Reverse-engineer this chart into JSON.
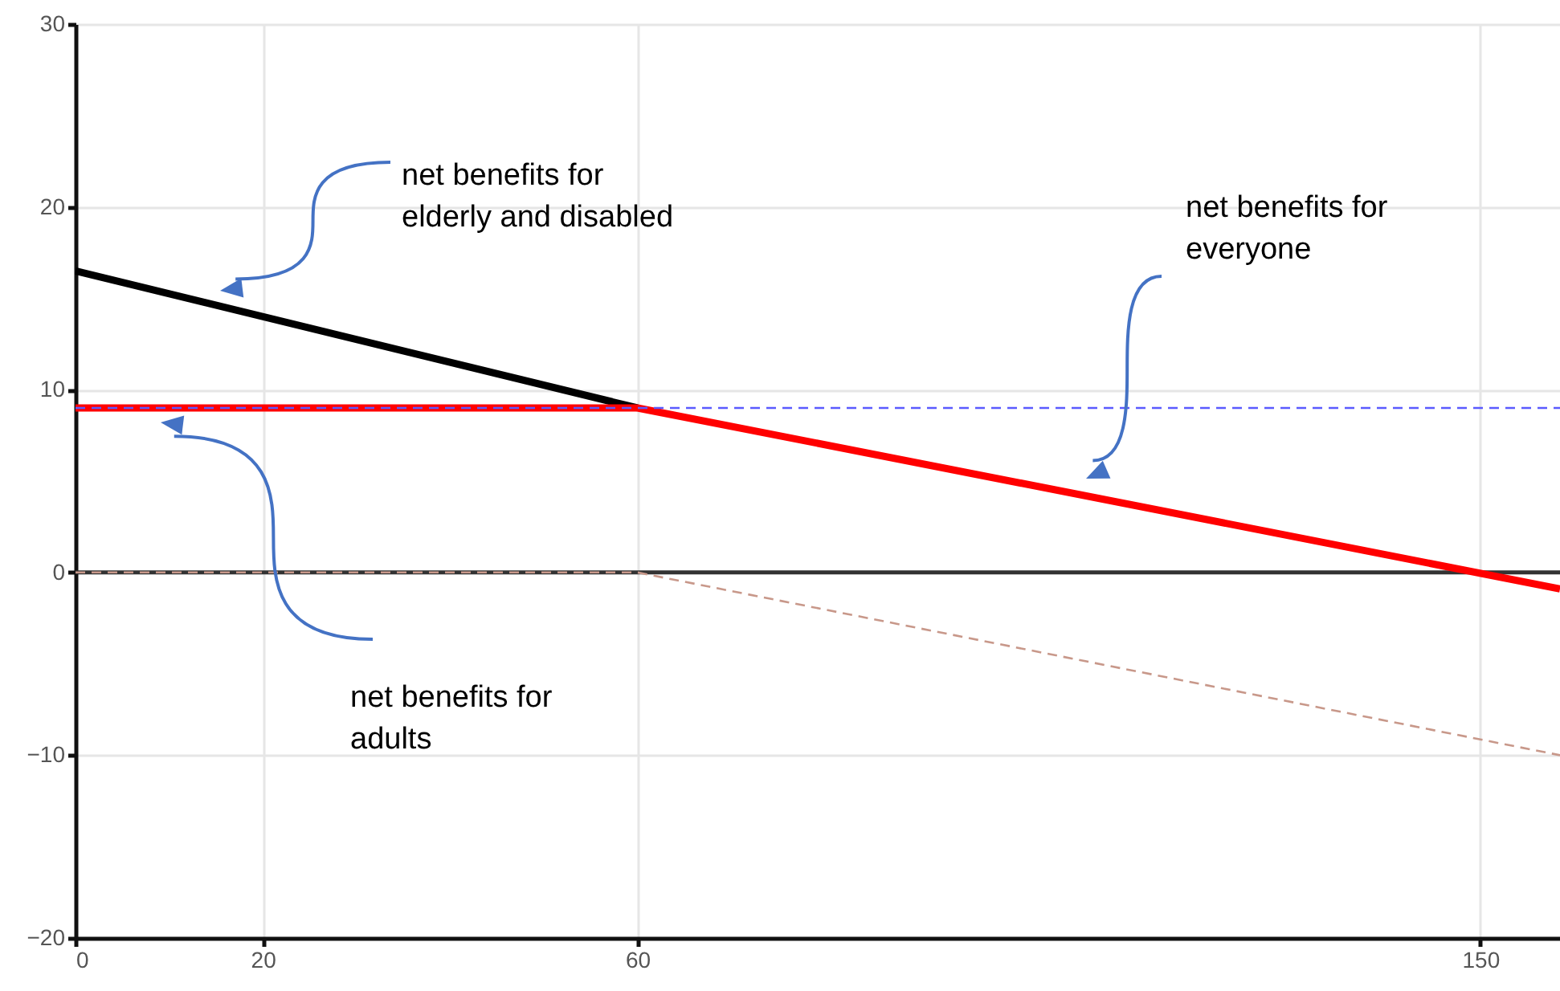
{
  "chart_data": {
    "type": "line",
    "xlim": [
      0,
      158.5
    ],
    "xticks": [
      0,
      20,
      60,
      150
    ],
    "ylim": [
      -20,
      30
    ],
    "yticks": [
      -20,
      -10,
      0,
      10,
      20,
      30
    ],
    "grid": true,
    "series": [
      {
        "color": "#000000",
        "x": [
          0,
          60
        ],
        "values": [
          16.5,
          9
        ]
      },
      {
        "color": "#ff0000",
        "x": [
          0,
          60,
          158.5
        ],
        "values": [
          9,
          9,
          -0.9
        ]
      },
      {
        "color": "#5a5aff",
        "line_style": "dashed",
        "x": [
          0,
          158.5
        ],
        "values": [
          9,
          9
        ]
      },
      {
        "color": "#c8988a",
        "line_style": "dashed",
        "x": [
          0,
          60,
          158.5
        ],
        "values": [
          0,
          0,
          -10
        ]
      }
    ],
    "ref_lines": [
      {
        "axis": "y",
        "value": 0,
        "color": "#333333"
      }
    ],
    "annotations": [
      "net benefits for\nelderly and disabled",
      "net benefits for\neveryone",
      "net benefits for\nadults"
    ]
  }
}
